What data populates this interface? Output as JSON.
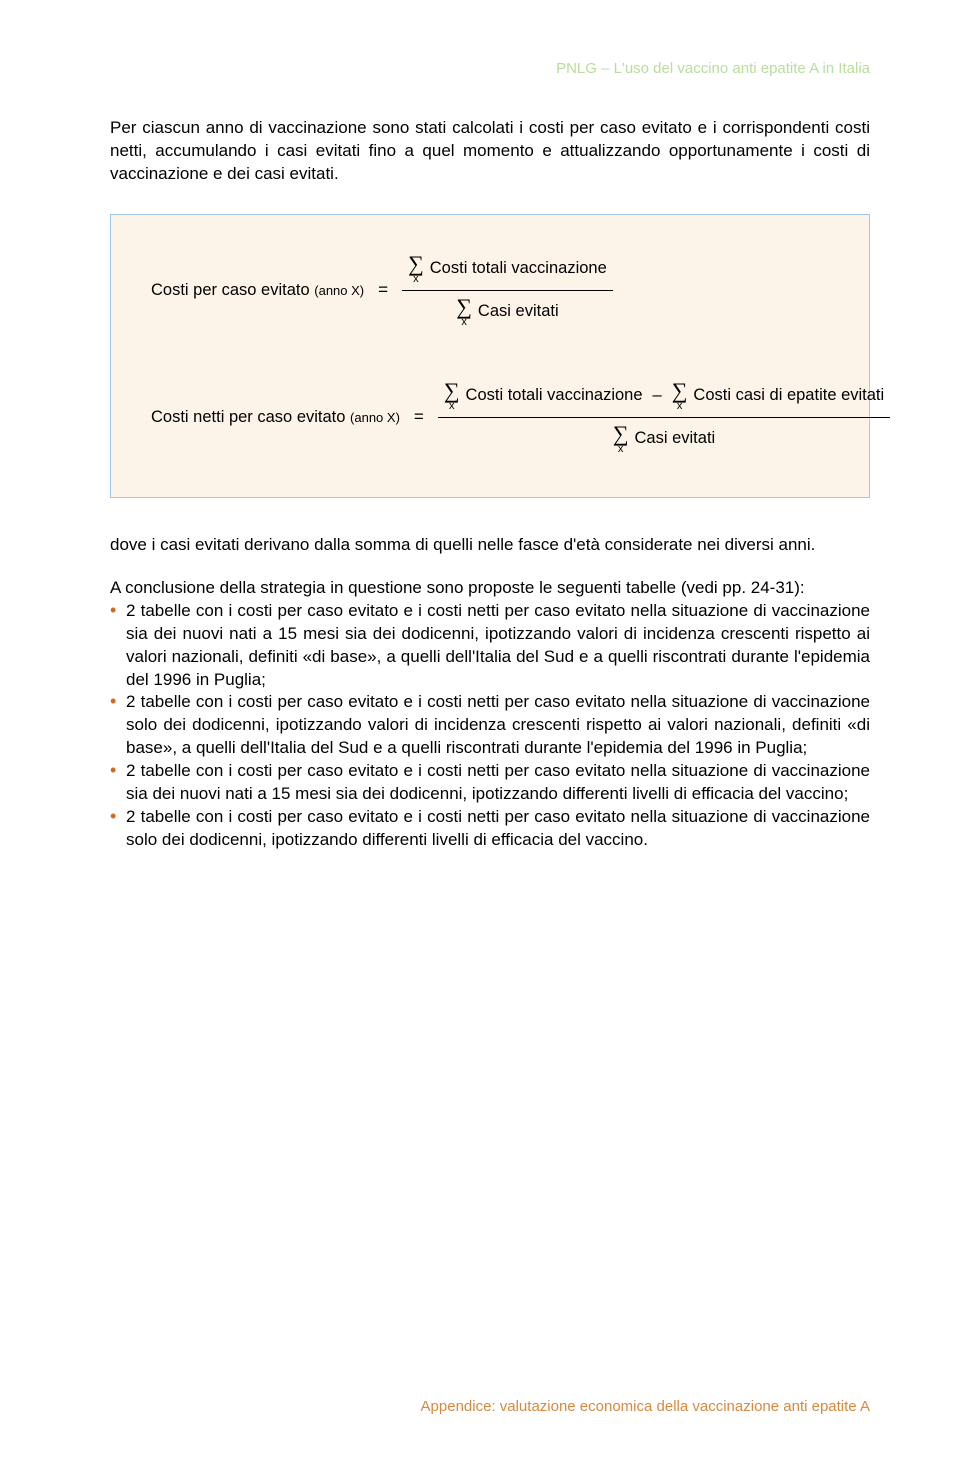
{
  "header": {
    "label": "PNLG – L'uso del vaccino anti epatite A in Italia",
    "color": "#b8de9c"
  },
  "intro": "Per ciascun anno di vaccinazione sono stati calcolati i costi per caso evitato e i corrispondenti costi netti, accumulando i casi evitati fino a quel momento e attualizzando opportunamente i costi di vaccinazione e dei casi evitati.",
  "formula_box": {
    "border_color": "#9fc9e8",
    "background_color": "#fcf4e8",
    "formula1": {
      "lhs_main": "Costi per caso evitato",
      "lhs_sub": "(anno X)",
      "num_term": "Costi totali vaccinazione",
      "den_term": "Casi evitati",
      "sigma_sub": "x"
    },
    "formula2": {
      "lhs_main": "Costi netti per caso evitato",
      "lhs_sub": "(anno X)",
      "num_term1": "Costi totali vaccinazione",
      "num_term2": "Costi casi di epatite evitati",
      "den_term": "Casi evitati",
      "sigma_sub": "x"
    }
  },
  "after_formula": "dove i casi evitati derivano dalla somma di quelli nelle fasce d'età considerate nei diversi anni.",
  "list_intro": "A conclusione della strategia in questione sono proposte le seguenti tabelle (vedi pp. 24-31):",
  "bullets": [
    "2 tabelle con i costi per caso evitato e i costi netti per caso evitato nella situazione di vaccinazione sia dei nuovi nati a 15 mesi sia dei dodicenni, ipotizzando valori di incidenza crescenti rispetto ai valori nazionali, definiti «di base», a quelli dell'Italia del Sud e a quelli riscontrati durante l'epidemia del 1996 in Puglia;",
    "2 tabelle con i costi per caso evitato e i costi netti per caso evitato nella situazione di vaccinazione solo dei dodicenni, ipotizzando valori di incidenza crescenti rispetto ai valori nazionali, definiti «di base», a quelli dell'Italia del Sud e a quelli riscontrati durante l'epidemia del 1996 in Puglia;",
    "2 tabelle con i costi per caso evitato e i costi netti per caso evitato nella situazione di vaccinazione sia dei nuovi nati a 15 mesi sia dei dodicenni, ipotizzando differenti livelli di efficacia del vaccino;",
    "2 tabelle con i costi per caso evitato e i costi netti per caso evitato nella situazione di vaccinazione solo dei dodicenni, ipotizzando differenti livelli di efficacia del vaccino."
  ],
  "bullet_color": "#d36a1e",
  "footer": {
    "text": "Appendice: valutazione economica della vaccinazione anti epatite A",
    "color": "#d68a3e"
  }
}
